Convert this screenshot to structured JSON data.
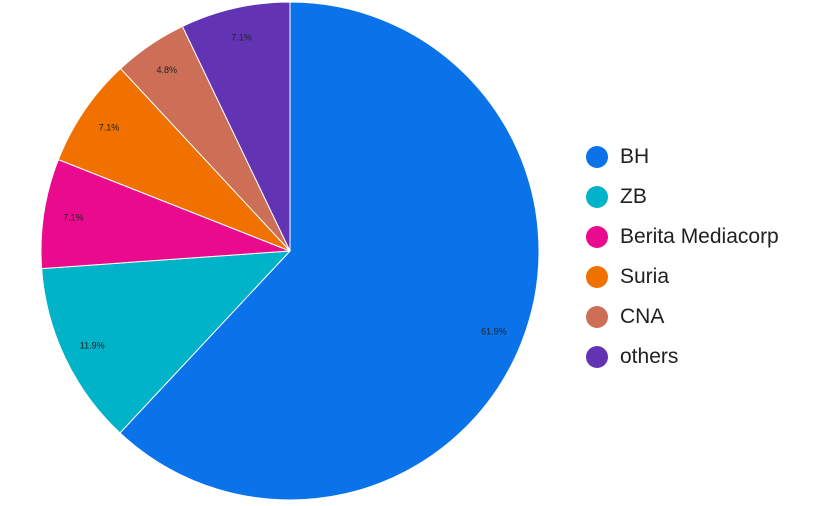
{
  "chart_data": {
    "type": "pie",
    "slices": [
      {
        "label": "BH",
        "value": 61.9,
        "display": "61.9%",
        "color": "#0b73ea"
      },
      {
        "label": "ZB",
        "value": 11.9,
        "display": "11.9%",
        "color": "#00b3c8"
      },
      {
        "label": "Berita Mediacorp",
        "value": 7.1,
        "display": "7.1%",
        "color": "#ea0a8e"
      },
      {
        "label": "Suria",
        "value": 7.1,
        "display": "7.1%",
        "color": "#f07000"
      },
      {
        "label": "CNA",
        "value": 4.8,
        "display": "4.8%",
        "color": "#cd6e57"
      },
      {
        "label": "others",
        "value": 7.1,
        "display": "7.1%",
        "color": "#6234b4"
      }
    ],
    "legend_position": "right",
    "start_angle": "12 o'clock",
    "direction": "clockwise"
  }
}
